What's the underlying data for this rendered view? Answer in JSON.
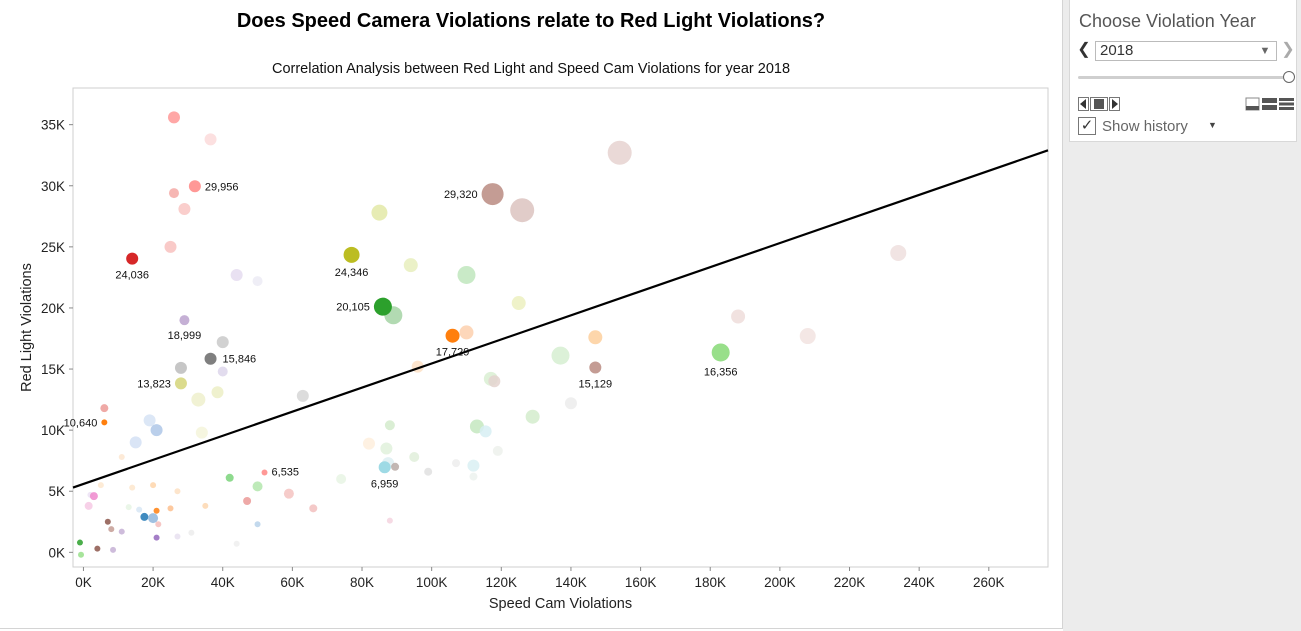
{
  "chart_data": {
    "type": "scatter",
    "title": "Does Speed Camera Violations relate to Red Light Violations?",
    "subtitle": "Correlation Analysis between Red Light and Speed Cam Violations for year 2018",
    "xlabel": "Speed Cam Violations",
    "ylabel": "Red Light Violations",
    "xlim": [
      -3000,
      277000
    ],
    "ylim": [
      -1200,
      38000
    ],
    "xticks": [
      0,
      20000,
      40000,
      60000,
      80000,
      100000,
      120000,
      140000,
      160000,
      180000,
      200000,
      220000,
      240000,
      260000
    ],
    "xtick_labels": [
      "0K",
      "20K",
      "40K",
      "60K",
      "80K",
      "100K",
      "120K",
      "140K",
      "160K",
      "180K",
      "200K",
      "220K",
      "240K",
      "260K"
    ],
    "yticks": [
      0,
      5000,
      10000,
      15000,
      20000,
      25000,
      30000,
      35000
    ],
    "ytick_labels": [
      "0K",
      "5K",
      "10K",
      "15K",
      "20K",
      "25K",
      "30K",
      "35K"
    ],
    "trend_line": {
      "x": [
        -3000,
        277000
      ],
      "y": [
        5300,
        32900
      ]
    },
    "highlighted_points": [
      {
        "x": 14000,
        "y": 24036,
        "color": "#d62728",
        "size": 6,
        "label": "24,036"
      },
      {
        "x": 32000,
        "y": 29956,
        "color": "#ff9896",
        "size": 6,
        "label": "29,956"
      },
      {
        "x": 29000,
        "y": 18999,
        "color": "#c5b0d5",
        "size": 5,
        "label": "18,999"
      },
      {
        "x": 36500,
        "y": 15846,
        "color": "#7f7f7f",
        "size": 6,
        "label": "15,846"
      },
      {
        "x": 28000,
        "y": 13823,
        "color": "#dbdb8d",
        "size": 6,
        "label": "13,823"
      },
      {
        "x": 6000,
        "y": 10640,
        "color": "#ff7f0e",
        "size": 3,
        "label": "10,640"
      },
      {
        "x": 77000,
        "y": 24346,
        "color": "#bcbd22",
        "size": 8,
        "label": "24,346"
      },
      {
        "x": 86000,
        "y": 20105,
        "color": "#2ca02c",
        "size": 9,
        "label": "20,105"
      },
      {
        "x": 106000,
        "y": 17729,
        "color": "#ff7f0e",
        "size": 7,
        "label": "17,729"
      },
      {
        "x": 117500,
        "y": 29320,
        "color": "#c49c94",
        "size": 11,
        "label": "29,320"
      },
      {
        "x": 147000,
        "y": 15129,
        "color": "#c49c94",
        "size": 6,
        "label": "15,129"
      },
      {
        "x": 183000,
        "y": 16356,
        "color": "#98df8a",
        "size": 9,
        "label": "16,356"
      },
      {
        "x": 52000,
        "y": 6535,
        "color": "#ff9896",
        "size": 3,
        "label": "6,535"
      },
      {
        "x": 86500,
        "y": 6959,
        "color": "#9edae5",
        "size": 6,
        "label": "6,959"
      }
    ],
    "history_points": [
      {
        "x": 26000,
        "y": 35600,
        "color": "#ff9896",
        "size": 6
      },
      {
        "x": 36500,
        "y": 33800,
        "color": "#fcdada",
        "size": 6
      },
      {
        "x": 154000,
        "y": 32700,
        "color": "#e6d2d0",
        "size": 12
      },
      {
        "x": 26000,
        "y": 29400,
        "color": "#f4a9a6",
        "size": 5
      },
      {
        "x": 29000,
        "y": 28100,
        "color": "#f9c5c3",
        "size": 6
      },
      {
        "x": 126000,
        "y": 28000,
        "color": "#dcc3bf",
        "size": 12
      },
      {
        "x": 85000,
        "y": 27800,
        "color": "#e3e9a7",
        "size": 8
      },
      {
        "x": 25000,
        "y": 25000,
        "color": "#f8c1be",
        "size": 6
      },
      {
        "x": 44000,
        "y": 22700,
        "color": "#e5dcf0",
        "size": 6
      },
      {
        "x": 50000,
        "y": 22200,
        "color": "#ecebf5",
        "size": 5
      },
      {
        "x": 94000,
        "y": 23500,
        "color": "#e8eebd",
        "size": 7
      },
      {
        "x": 110000,
        "y": 22700,
        "color": "#bfe6bd",
        "size": 9
      },
      {
        "x": 234000,
        "y": 24500,
        "color": "#efdfde",
        "size": 8
      },
      {
        "x": 125000,
        "y": 20400,
        "color": "#ecf0c0",
        "size": 7
      },
      {
        "x": 89000,
        "y": 19400,
        "color": "#a4d3a4",
        "size": 9
      },
      {
        "x": 188000,
        "y": 19300,
        "color": "#efdddb",
        "size": 7
      },
      {
        "x": 208000,
        "y": 17700,
        "color": "#f2e3e1",
        "size": 8
      },
      {
        "x": 110000,
        "y": 18000,
        "color": "#fdd0ae",
        "size": 7
      },
      {
        "x": 147000,
        "y": 17600,
        "color": "#fdcf9c",
        "size": 7
      },
      {
        "x": 40000,
        "y": 17200,
        "color": "#c9c9c9",
        "size": 6
      },
      {
        "x": 137000,
        "y": 16100,
        "color": "#d6eed1",
        "size": 9
      },
      {
        "x": 28000,
        "y": 15100,
        "color": "#bcbcbc",
        "size": 6
      },
      {
        "x": 40000,
        "y": 14800,
        "color": "#ddd6eb",
        "size": 5
      },
      {
        "x": 96000,
        "y": 15200,
        "color": "#fde0c6",
        "size": 6
      },
      {
        "x": 117000,
        "y": 14200,
        "color": "#d9efd2",
        "size": 7
      },
      {
        "x": 118000,
        "y": 14000,
        "color": "#e4d3cf",
        "size": 6
      },
      {
        "x": 38500,
        "y": 13100,
        "color": "#ecefc6",
        "size": 6
      },
      {
        "x": 33000,
        "y": 12500,
        "color": "#eef0cc",
        "size": 7
      },
      {
        "x": 63000,
        "y": 12800,
        "color": "#d6d6d6",
        "size": 6
      },
      {
        "x": 140000,
        "y": 12200,
        "color": "#ececec",
        "size": 6
      },
      {
        "x": 6000,
        "y": 11800,
        "color": "#ec9a97",
        "size": 4
      },
      {
        "x": 19000,
        "y": 10800,
        "color": "#d6e3f5",
        "size": 6
      },
      {
        "x": 21000,
        "y": 10000,
        "color": "#aec7e8",
        "size": 6
      },
      {
        "x": 129000,
        "y": 11100,
        "color": "#d4eccd",
        "size": 7
      },
      {
        "x": 113000,
        "y": 10300,
        "color": "#c4e8bf",
        "size": 7
      },
      {
        "x": 115500,
        "y": 9900,
        "color": "#d7eef3",
        "size": 6
      },
      {
        "x": 88000,
        "y": 10400,
        "color": "#d3ebcc",
        "size": 5
      },
      {
        "x": 34000,
        "y": 9800,
        "color": "#f4f4da",
        "size": 6
      },
      {
        "x": 15000,
        "y": 9000,
        "color": "#d3e1f5",
        "size": 6
      },
      {
        "x": 82000,
        "y": 8900,
        "color": "#feeedd",
        "size": 6
      },
      {
        "x": 87000,
        "y": 8500,
        "color": "#e0f1dc",
        "size": 6
      },
      {
        "x": 119000,
        "y": 8300,
        "color": "#edf1ec",
        "size": 5
      },
      {
        "x": 11000,
        "y": 7800,
        "color": "#fde6d0",
        "size": 3
      },
      {
        "x": 87500,
        "y": 7300,
        "color": "#ddeff2",
        "size": 6
      },
      {
        "x": 95000,
        "y": 7800,
        "color": "#e0efdb",
        "size": 5
      },
      {
        "x": 107000,
        "y": 7300,
        "color": "#ededed",
        "size": 4
      },
      {
        "x": 112000,
        "y": 7100,
        "color": "#d9f0f3",
        "size": 6
      },
      {
        "x": 89500,
        "y": 7000,
        "color": "#b8aaa6",
        "size": 4
      },
      {
        "x": 99000,
        "y": 6600,
        "color": "#e1e1e1",
        "size": 4
      },
      {
        "x": 74000,
        "y": 6000,
        "color": "#e8f5e4",
        "size": 5
      },
      {
        "x": 112000,
        "y": 6200,
        "color": "#ecf2ee",
        "size": 4
      },
      {
        "x": 42000,
        "y": 6100,
        "color": "#7ad37a",
        "size": 4
      },
      {
        "x": 50000,
        "y": 5400,
        "color": "#b3e6ad",
        "size": 5
      },
      {
        "x": 59000,
        "y": 4800,
        "color": "#f4c3c1",
        "size": 5
      },
      {
        "x": 47000,
        "y": 4200,
        "color": "#eb9a98",
        "size": 4
      },
      {
        "x": 66000,
        "y": 3600,
        "color": "#f2c0be",
        "size": 4
      },
      {
        "x": 5000,
        "y": 5500,
        "color": "#fde8cf",
        "size": 3
      },
      {
        "x": 14000,
        "y": 5300,
        "color": "#fde6cc",
        "size": 3
      },
      {
        "x": 20000,
        "y": 5500,
        "color": "#fed5aa",
        "size": 3
      },
      {
        "x": 27000,
        "y": 5000,
        "color": "#fde0c3",
        "size": 3
      },
      {
        "x": 2000,
        "y": 4700,
        "color": "#ece2f5",
        "size": 3
      },
      {
        "x": 3000,
        "y": 4600,
        "color": "#ee88cc",
        "size": 4
      },
      {
        "x": 1500,
        "y": 3800,
        "color": "#f6c9e4",
        "size": 4
      },
      {
        "x": 13000,
        "y": 3700,
        "color": "#e6f5e4",
        "size": 3
      },
      {
        "x": 16000,
        "y": 3500,
        "color": "#d7e6f5",
        "size": 3
      },
      {
        "x": 21000,
        "y": 3400,
        "color": "#ff7f0e",
        "size": 3
      },
      {
        "x": 25000,
        "y": 3600,
        "color": "#fdbf8e",
        "size": 3
      },
      {
        "x": 35000,
        "y": 3800,
        "color": "#fdd7b0",
        "size": 3
      },
      {
        "x": 17500,
        "y": 2900,
        "color": "#1f77b4",
        "size": 4
      },
      {
        "x": 20000,
        "y": 2800,
        "color": "#8fb6dc",
        "size": 5
      },
      {
        "x": 21500,
        "y": 2300,
        "color": "#f4bdbb",
        "size": 3
      },
      {
        "x": 7000,
        "y": 2500,
        "color": "#8c564b",
        "size": 3
      },
      {
        "x": 8000,
        "y": 1900,
        "color": "#c49c94",
        "size": 3
      },
      {
        "x": 11000,
        "y": 1700,
        "color": "#c5b0d5",
        "size": 3
      },
      {
        "x": 21000,
        "y": 1200,
        "color": "#9467bd",
        "size": 3
      },
      {
        "x": -1000,
        "y": 800,
        "color": "#2ca02c",
        "size": 3
      },
      {
        "x": 4000,
        "y": 300,
        "color": "#8c564b",
        "size": 3
      },
      {
        "x": -700,
        "y": -200,
        "color": "#98df8a",
        "size": 3
      },
      {
        "x": 8500,
        "y": 200,
        "color": "#c5b0d5",
        "size": 3
      },
      {
        "x": 27000,
        "y": 1300,
        "color": "#e8e0f0",
        "size": 3
      },
      {
        "x": 50000,
        "y": 2300,
        "color": "#b9d2ea",
        "size": 3
      },
      {
        "x": 88000,
        "y": 2600,
        "color": "#f4d4df",
        "size": 3
      },
      {
        "x": 44000,
        "y": 700,
        "color": "#eeeeee",
        "size": 3
      },
      {
        "x": 31000,
        "y": 1600,
        "color": "#ececec",
        "size": 3
      }
    ]
  },
  "filter_panel": {
    "title": "Choose Violation Year",
    "selected_year": "2018",
    "show_history_label": "Show history",
    "show_history_checked": true,
    "slider_position": 1.0
  }
}
